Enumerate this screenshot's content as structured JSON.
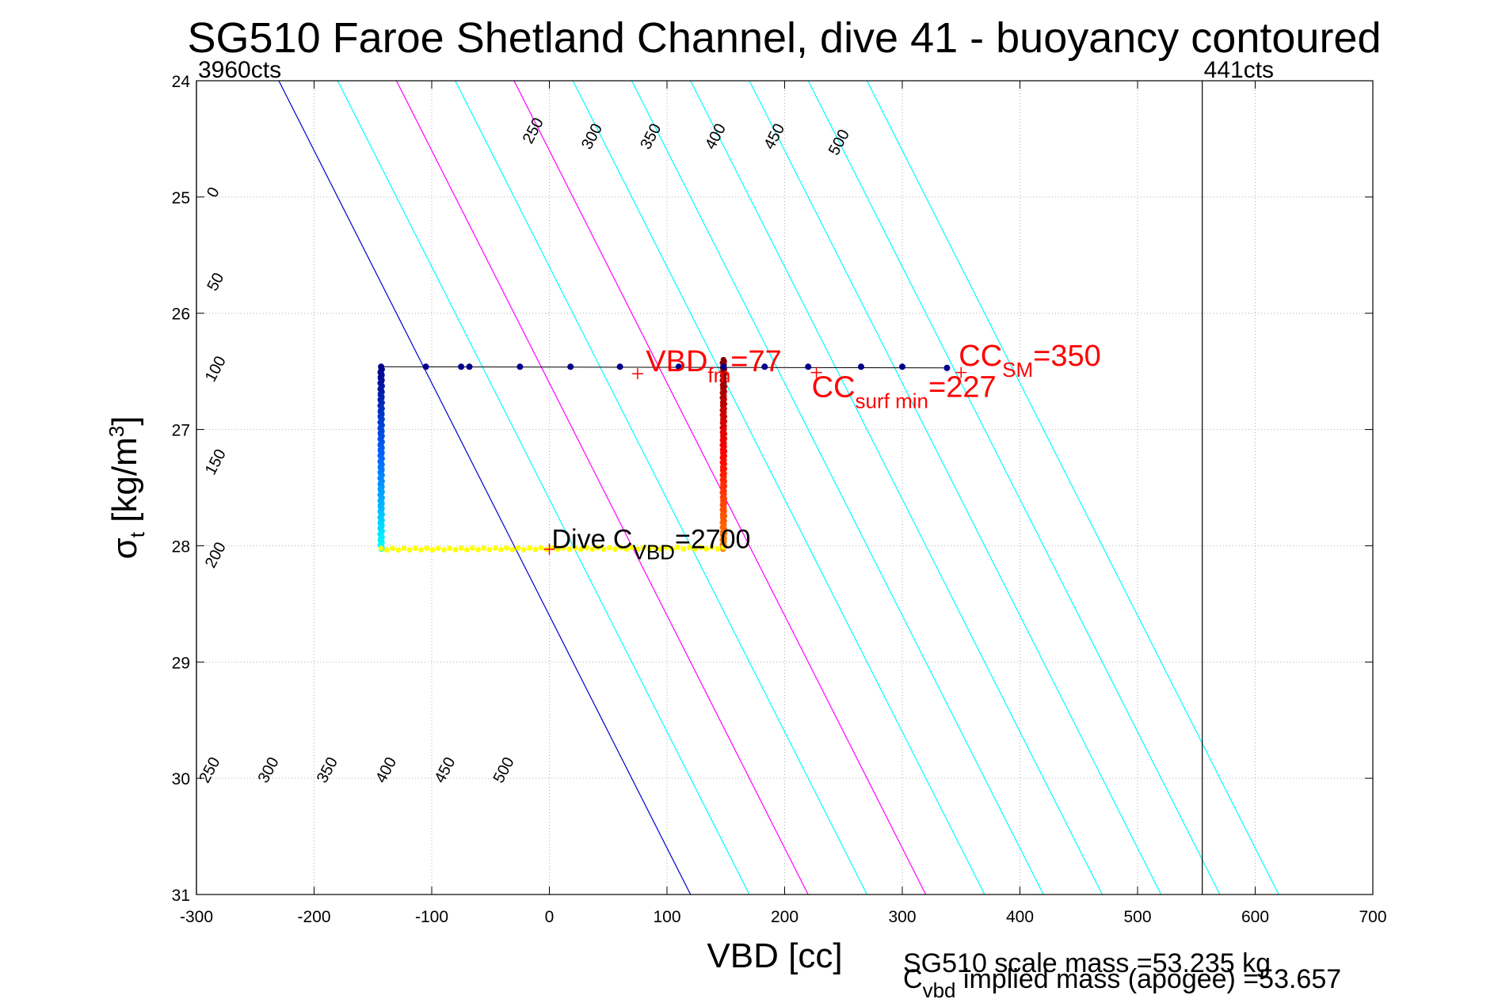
{
  "chart_data": {
    "type": "scatter",
    "title": "SG510 Faroe Shetland Channel, dive 41 - buoyancy contoured",
    "xlabel": "VBD [cc]",
    "ylabel": {
      "main": "σ",
      "sub": "t",
      "unit": "[kg/m",
      "sup": "3",
      "close": "]"
    },
    "xlim": [
      -300,
      700
    ],
    "ylim": [
      24,
      31
    ],
    "y_reversed": true,
    "grid": true,
    "xticks": [
      -300,
      -200,
      -100,
      0,
      100,
      200,
      300,
      400,
      500,
      600,
      700
    ],
    "yticks": [
      24,
      25,
      26,
      27,
      28,
      29,
      30,
      31
    ],
    "vertical_lines": [
      {
        "x": -300,
        "label": "3960cts"
      },
      {
        "x": 555,
        "label": "441cts"
      }
    ],
    "contour_slope_cc_per_sigma": 50,
    "contours": [
      {
        "level": 0,
        "x_at_24": -230,
        "color": "#0000cc"
      },
      {
        "level": 50,
        "x_at_24": -180,
        "color": "#00ffff"
      },
      {
        "level": 100,
        "x_at_24": -130,
        "color": "#ff00ff"
      },
      {
        "level": 150,
        "x_at_24": -80,
        "color": "#00ffff"
      },
      {
        "level": 200,
        "x_at_24": -30,
        "color": "#ff00ff"
      },
      {
        "level": 250,
        "x_at_24": 20,
        "color": "#00ffff"
      },
      {
        "level": 300,
        "x_at_24": 70,
        "color": "#00ffff"
      },
      {
        "level": 350,
        "x_at_24": 120,
        "color": "#00ffff"
      },
      {
        "level": 400,
        "x_at_24": 170,
        "color": "#00ffff"
      },
      {
        "level": 450,
        "x_at_24": 220,
        "color": "#00ffff"
      },
      {
        "level": 500,
        "x_at_24": 270,
        "color": "#00ffff"
      }
    ],
    "contour_labels_top": [
      {
        "text": "250",
        "x": -10,
        "y": 24.45
      },
      {
        "text": "300",
        "x": 40,
        "y": 24.5
      },
      {
        "text": "350",
        "x": 90,
        "y": 24.5
      },
      {
        "text": "400",
        "x": 145,
        "y": 24.5
      },
      {
        "text": "450",
        "x": 195,
        "y": 24.5
      },
      {
        "text": "500",
        "x": 250,
        "y": 24.55
      }
    ],
    "contour_labels_left": [
      {
        "text": "0",
        "x": -282,
        "y": 24.98
      },
      {
        "text": "50",
        "x": -280,
        "y": 25.75
      },
      {
        "text": "100",
        "x": -280,
        "y": 26.5
      },
      {
        "text": "150",
        "x": -280,
        "y": 27.3
      },
      {
        "text": "200",
        "x": -280,
        "y": 28.1
      }
    ],
    "contour_labels_bottom": [
      {
        "text": "250",
        "x": -285,
        "y": 29.95
      },
      {
        "text": "300",
        "x": -235,
        "y": 29.95
      },
      {
        "text": "350",
        "x": -185,
        "y": 29.95
      },
      {
        "text": "400",
        "x": -135,
        "y": 29.95
      },
      {
        "text": "450",
        "x": -85,
        "y": 29.95
      },
      {
        "text": "500",
        "x": -35,
        "y": 29.95
      }
    ],
    "surface_line": {
      "x": [
        -143,
        340
      ],
      "y": [
        26.46,
        26.47
      ]
    },
    "surface_points": {
      "x": [
        -143,
        -105,
        -75,
        -68,
        -25,
        18,
        60,
        110,
        148,
        183,
        220,
        265,
        300,
        338
      ],
      "y": [
        26.46,
        26.46,
        26.46,
        26.46,
        26.46,
        26.46,
        26.46,
        26.46,
        26.46,
        26.46,
        26.46,
        26.46,
        26.46,
        26.47
      ],
      "color": "#00008b"
    },
    "descent_column": {
      "x": -143,
      "y_range": [
        26.47,
        28.03
      ],
      "color_top": "#00008b",
      "color_mid": "#0066ff",
      "color_bottom": "#00ffff"
    },
    "bottom_track": {
      "x_range": [
        -143,
        148
      ],
      "y_left": 28.03,
      "y_right": 28.02,
      "color": "#ffff00"
    },
    "ascent_column": {
      "x": 148,
      "y_range": [
        26.4,
        28.03
      ],
      "color_top": "#800000",
      "color_mid": "#ff0000",
      "color_bottom": "#ff8000"
    },
    "markers": [
      {
        "type": "plus",
        "x": 75,
        "y": 26.52,
        "color": "#ff0000"
      },
      {
        "type": "plus",
        "x": 0,
        "y": 28.03,
        "color": "#ff0000"
      },
      {
        "type": "plus",
        "x": 350,
        "y": 26.51,
        "color": "#ff0000"
      },
      {
        "type": "plus",
        "x": 227,
        "y": 26.51,
        "color": "#ff0000"
      }
    ],
    "annotations": {
      "vbd_fm": {
        "pre": "VBD",
        "sub": "fm",
        "post": "=77",
        "x": 82,
        "y": 26.5
      },
      "cc_sm": {
        "pre": "CC",
        "sub": "SM",
        "post": "=350",
        "x": 348,
        "y": 26.45
      },
      "cc_surf": {
        "pre": "CC",
        "sub": "surf min",
        "post": "=227",
        "x": 223,
        "y": 26.72
      },
      "dive_cvbd": {
        "pre": "Dive C",
        "sub": "VBD",
        "post": "=2700",
        "x": 2,
        "y": 28.02
      }
    },
    "footer": {
      "scale_mass": "SG510 scale mass =53.235 kg",
      "implied_pre": "C",
      "implied_sub": "vbd",
      "implied_post": " implied mass (apogee) =53.657"
    }
  }
}
